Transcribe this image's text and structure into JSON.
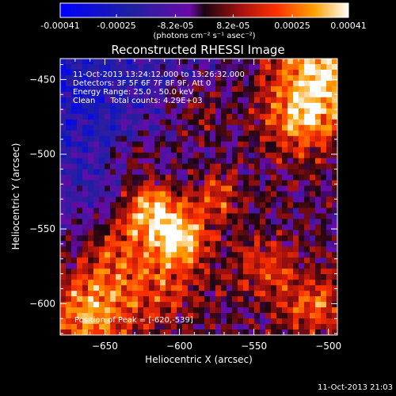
{
  "chart_data": {
    "type": "heatmap",
    "title": "Reconstructed RHESSI Image",
    "xlabel": "Heliocentric X (arcsec)",
    "ylabel": "Heliocentric Y (arcsec)",
    "xlim": [
      -680,
      -494
    ],
    "ylim": [
      -621,
      -436
    ],
    "xticks": [
      -650,
      -600,
      -550,
      -500
    ],
    "yticks": [
      -600,
      -550,
      -500,
      -450
    ],
    "grid": false,
    "colorbar": {
      "location": "top",
      "range": [
        -0.00041,
        0.00041
      ],
      "tick_values": [
        -0.00041,
        -0.00025,
        -8.2e-05,
        8.2e-05,
        0.00025,
        0.00041
      ],
      "tick_labels": [
        "-0.00041",
        "-0.00025",
        "-8.2e-05",
        "8.2e-05",
        "0.00025",
        "0.00041"
      ],
      "units": "(photons cm⁻² s⁻¹ asec⁻²)",
      "colormap": [
        {
          "v": 0.0,
          "c": "#0000ff"
        },
        {
          "v": 0.25,
          "c": "#2020a0"
        },
        {
          "v": 0.45,
          "c": "#6a0aa8"
        },
        {
          "v": 0.5,
          "c": "#1a0510"
        },
        {
          "v": 0.62,
          "c": "#a01010"
        },
        {
          "v": 0.75,
          "c": "#ff3000"
        },
        {
          "v": 0.88,
          "c": "#ffa000"
        },
        {
          "v": 1.0,
          "c": "#ffffff"
        }
      ]
    },
    "peak": [
      -620,
      -539
    ],
    "sources": [
      {
        "x": -618,
        "y": -538,
        "amp": 1.0,
        "sigma": 14
      },
      {
        "x": -598,
        "y": -556,
        "amp": 0.85,
        "sigma": 12
      },
      {
        "x": -575,
        "y": -528,
        "amp": 0.55,
        "sigma": 12
      },
      {
        "x": -640,
        "y": -565,
        "amp": 0.45,
        "sigma": 16
      },
      {
        "x": -610,
        "y": -585,
        "amp": 0.45,
        "sigma": 18
      },
      {
        "x": -505,
        "y": -445,
        "amp": 0.9,
        "sigma": 22
      },
      {
        "x": -520,
        "y": -478,
        "amp": 0.6,
        "sigma": 18
      },
      {
        "x": -660,
        "y": -605,
        "amp": 0.8,
        "sigma": 20
      },
      {
        "x": -545,
        "y": -575,
        "amp": 0.45,
        "sigma": 14
      },
      {
        "x": -590,
        "y": -475,
        "amp": 0.35,
        "sigma": 16
      },
      {
        "x": -630,
        "y": -500,
        "amp": 0.35,
        "sigma": 14
      },
      {
        "x": -510,
        "y": -600,
        "amp": 0.55,
        "sigma": 15
      }
    ],
    "annotations": [
      "11-Oct-2013 13:24:12.000 to 13:26:32.000",
      "Detectors: 3F 5F 6F 7F 8F 9F, Att 0",
      "Energy Range: 25.0 - 50.0 keV",
      "Clean      Total counts: 4.29E+03"
    ],
    "peak_label": "Position of Peak = [-620,-539]"
  },
  "footer": {
    "timestamp": "11-Oct-2013 21:03"
  },
  "colors": {
    "background": "#000000",
    "foreground": "#ffffff"
  }
}
